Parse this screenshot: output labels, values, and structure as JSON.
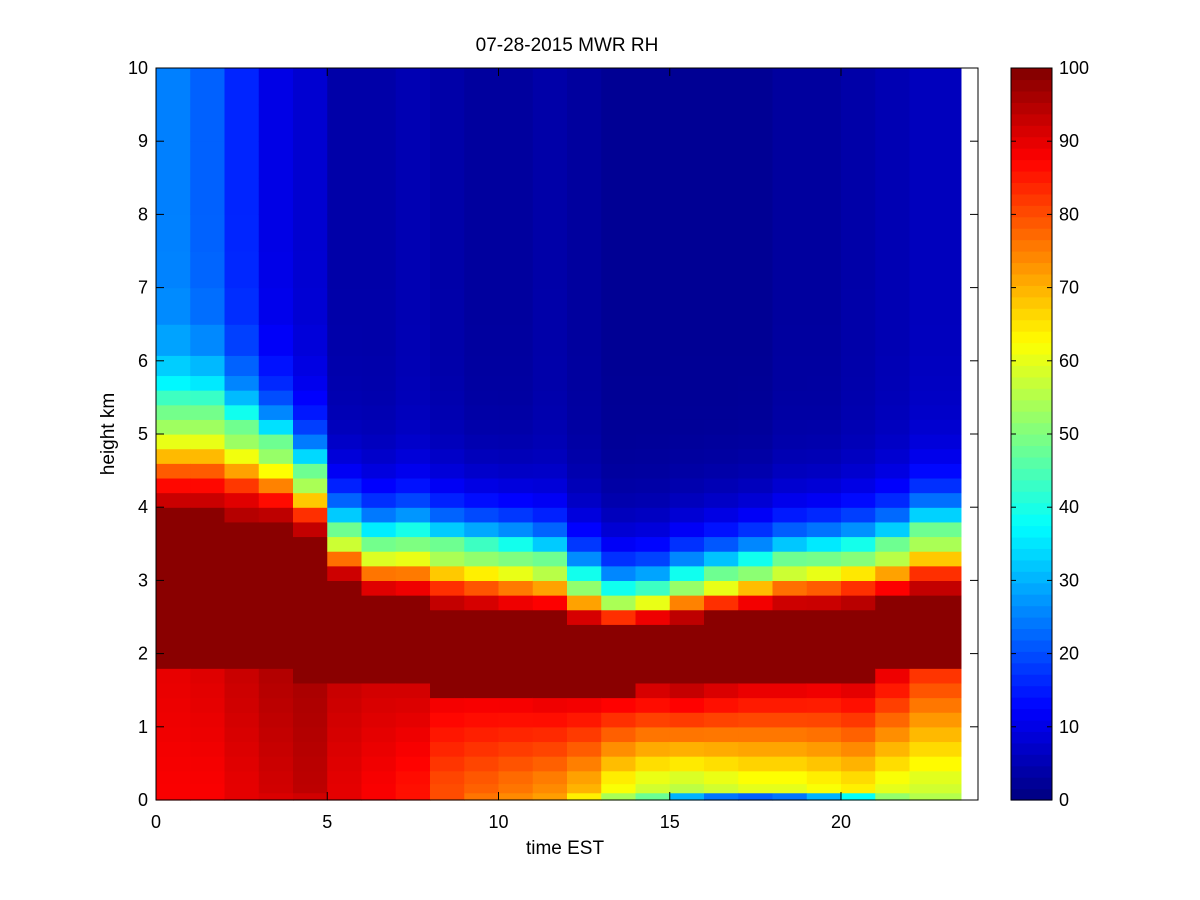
{
  "chart_data": {
    "type": "heatmap",
    "title": "07-28-2015 MWR RH",
    "xlabel": "time EST",
    "ylabel": "height km",
    "xlim": [
      0,
      24
    ],
    "ylim": [
      0,
      10
    ],
    "xticks": [
      0,
      5,
      10,
      15,
      20
    ],
    "yticks": [
      0,
      1,
      2,
      3,
      4,
      5,
      6,
      7,
      8,
      9,
      10
    ],
    "x_centers": [
      0.5,
      1.5,
      2.5,
      3.5,
      4.5,
      5.5,
      6.5,
      7.5,
      8.5,
      9.5,
      10.5,
      11.5,
      12.5,
      13.5,
      14.5,
      15.5,
      16.5,
      17.5,
      18.5,
      19.5,
      20.5,
      21.5,
      22.5
    ],
    "height_levels": [
      0.05,
      0.15,
      0.3,
      0.5,
      0.7,
      0.9,
      1.1,
      1.3,
      1.5,
      1.7,
      1.9,
      2.1,
      2.3,
      2.5,
      2.7,
      2.9,
      3.1,
      3.3,
      3.5,
      3.7,
      3.9,
      4.1,
      4.3,
      4.5,
      4.7,
      4.9,
      5.1,
      5.3,
      5.5,
      5.7,
      5.9,
      6.25,
      6.75,
      7.25,
      7.75,
      8.25,
      8.75,
      9.25,
      9.75
    ],
    "colorbar": {
      "colormap": "jet",
      "clim": [
        0,
        100
      ],
      "ticks": [
        0,
        10,
        20,
        30,
        40,
        50,
        60,
        70,
        80,
        90,
        100
      ]
    },
    "estimated_fields": {
      "surface_rh": [
        88,
        88,
        90,
        91,
        92,
        90,
        88,
        86,
        80,
        76,
        74,
        72,
        64,
        54,
        48,
        30,
        24,
        22,
        24,
        30,
        38,
        52,
        55
      ],
      "near_surface_rh": [
        88,
        88,
        90,
        92,
        94,
        90,
        88,
        86,
        80,
        78,
        76,
        74,
        70,
        62,
        58,
        56,
        58,
        60,
        60,
        62,
        64,
        60,
        58
      ],
      "boundary_layer_rh": [
        90,
        91,
        93,
        95,
        96,
        93,
        92,
        92,
        90,
        90,
        90,
        91,
        92,
        92,
        94,
        96,
        95,
        94,
        94,
        93,
        94,
        90,
        84
      ],
      "cloud_base_km": [
        1.9,
        1.9,
        1.8,
        1.75,
        1.7,
        1.6,
        1.55,
        1.55,
        1.5,
        1.5,
        1.45,
        1.45,
        1.5,
        1.5,
        1.6,
        1.6,
        1.65,
        1.7,
        1.7,
        1.7,
        1.7,
        1.75,
        1.8
      ],
      "moist_top_km": [
        3.9,
        3.9,
        3.85,
        3.8,
        3.6,
        3.0,
        2.75,
        2.7,
        2.6,
        2.55,
        2.5,
        2.5,
        2.4,
        2.35,
        2.4,
        2.45,
        2.5,
        2.55,
        2.6,
        2.6,
        2.65,
        2.7,
        2.8
      ],
      "transition_depth_km": [
        1.5,
        1.5,
        1.3,
        1.1,
        0.9,
        0.7,
        0.8,
        0.9,
        0.9,
        0.9,
        0.9,
        0.8,
        0.6,
        0.45,
        0.45,
        0.55,
        0.6,
        0.65,
        0.7,
        0.75,
        0.75,
        0.8,
        0.9
      ],
      "upper_rh": [
        25,
        22,
        16,
        10,
        8,
        4,
        4,
        5,
        4,
        3,
        3,
        4,
        3,
        2,
        2,
        2,
        2,
        2,
        3,
        3,
        4,
        5,
        6
      ]
    }
  }
}
